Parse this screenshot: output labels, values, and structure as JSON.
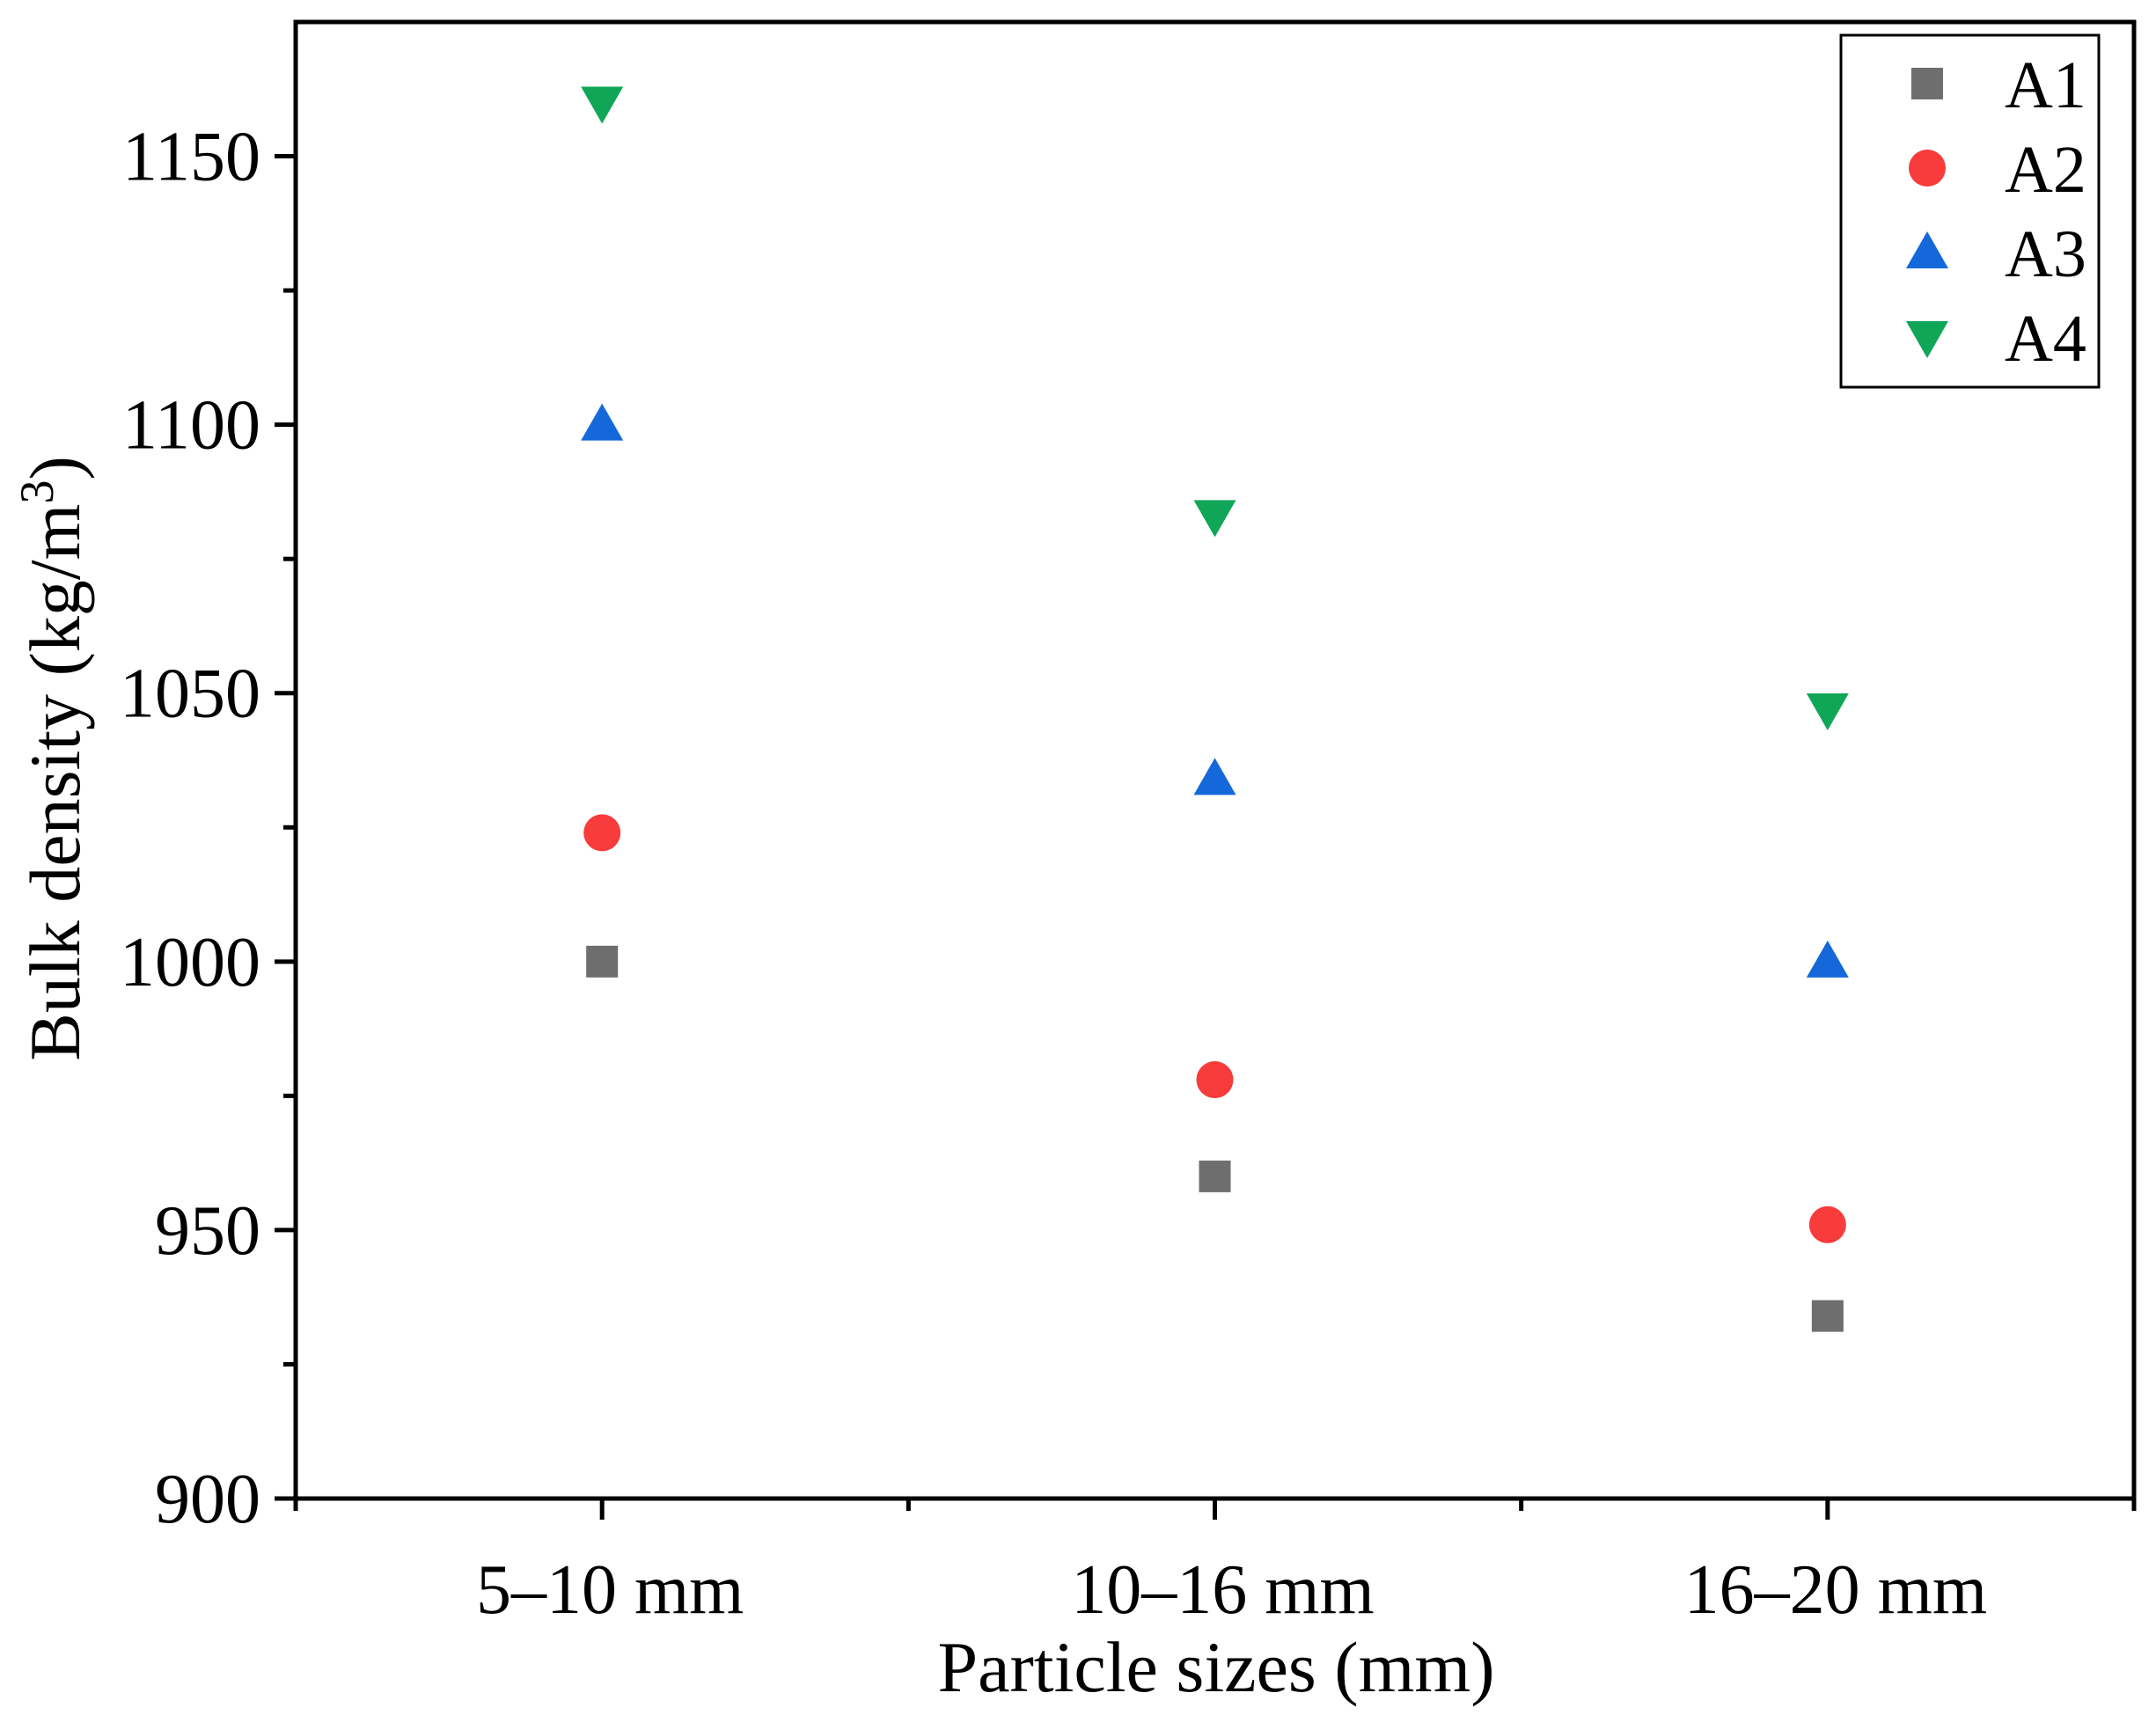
{
  "chart_data": {
    "type": "scatter",
    "title": "",
    "xlabel": "Particle sizes (mm)",
    "ylabel_main": "Bulk density (kg/m",
    "ylabel_sup": "3",
    "ylabel_close": ")",
    "categories": [
      "5–10 mm",
      "10–16 mm",
      "16–20 mm"
    ],
    "ylim": [
      900,
      1175
    ],
    "yticks": [
      900,
      950,
      1000,
      1050,
      1100,
      1150
    ],
    "ytick_labels": [
      "900",
      "950",
      "1000",
      "1050",
      "1100",
      "1150"
    ],
    "yminor_step": 25,
    "grid": false,
    "legend_position": "top-right",
    "series": [
      {
        "name": "A1",
        "marker": "square",
        "color": "#6e6e6e",
        "values": [
          1000,
          960,
          934
        ]
      },
      {
        "name": "A2",
        "marker": "circle",
        "color": "#f83b3b",
        "values": [
          1024,
          978,
          951
        ]
      },
      {
        "name": "A3",
        "marker": "triangle-up",
        "color": "#1468d9",
        "values": [
          1100,
          1034,
          1000
        ]
      },
      {
        "name": "A4",
        "marker": "triangle-down",
        "color": "#10a657",
        "values": [
          1160,
          1083,
          1047
        ]
      }
    ]
  }
}
